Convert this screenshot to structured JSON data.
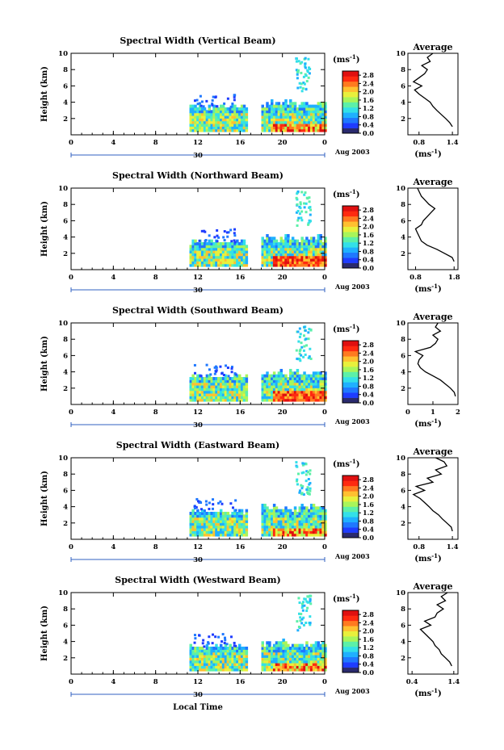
{
  "chart_data": [
    {
      "type": "heatmap",
      "title": "Spectral Width (Vertical Beam)",
      "ylabel": "Height (km)",
      "xlim": [
        0,
        24
      ],
      "ylim": [
        0,
        10
      ],
      "xticks": [
        "0",
        "4",
        "8",
        "12",
        "16",
        "20",
        "0"
      ],
      "yticks": [
        "2",
        "4",
        "6",
        "8",
        "10"
      ],
      "date_label": "30",
      "month_label": "Aug 2003",
      "colorbar": {
        "unit": "(ms",
        "exponent": "-1",
        "unit_close": ")",
        "ticks": [
          "2.8",
          "2.4",
          "2.0",
          "1.6",
          "1.2",
          "0.8",
          "0.4",
          "0.0"
        ],
        "range": [
          0.0,
          3.0
        ]
      },
      "average": {
        "title": "Average",
        "xlabel": "(ms",
        "xlabel_exp": "-1",
        "xlabel_close": ")",
        "xticks": [
          "0.8",
          "1.4"
        ],
        "xlim": [
          0.6,
          1.5
        ],
        "yticks": [
          "2",
          "4",
          "6",
          "8",
          "10"
        ],
        "ylim": [
          0,
          10
        ],
        "height": [
          1.0,
          1.5,
          2.0,
          2.5,
          3.0,
          3.5,
          4.0,
          4.5,
          5.0,
          5.5,
          6.0,
          6.5,
          7.0,
          7.5,
          8.0,
          8.5,
          9.0,
          9.5,
          10.0
        ],
        "value": [
          1.4,
          1.35,
          1.28,
          1.2,
          1.12,
          1.05,
          1.0,
          0.9,
          0.8,
          0.72,
          0.85,
          0.7,
          0.8,
          0.9,
          0.95,
          0.85,
          1.0,
          0.95,
          1.05
        ]
      }
    },
    {
      "type": "heatmap",
      "title": "Spectral Width (Northward Beam)",
      "ylabel": "Height (km)",
      "xlim": [
        0,
        24
      ],
      "ylim": [
        0,
        10
      ],
      "xticks": [
        "0",
        "4",
        "8",
        "12",
        "16",
        "20",
        "0"
      ],
      "yticks": [
        "2",
        "4",
        "6",
        "8",
        "10"
      ],
      "date_label": "30",
      "month_label": "Aug 2003",
      "colorbar": {
        "unit": "(ms",
        "exponent": "-1",
        "unit_close": ")",
        "ticks": [
          "2.8",
          "2.4",
          "2.0",
          "1.6",
          "1.2",
          "0.8",
          "0.4",
          "0.0"
        ],
        "range": [
          0.0,
          3.0
        ]
      },
      "average": {
        "title": "Average",
        "xlabel": "(ms",
        "xlabel_exp": "-1",
        "xlabel_close": ")",
        "xticks": [
          "0.8",
          "1.8"
        ],
        "xlim": [
          0.6,
          1.9
        ],
        "yticks": [
          "2",
          "4",
          "6",
          "8",
          "10"
        ],
        "ylim": [
          0,
          10
        ],
        "height": [
          1.0,
          1.5,
          2.0,
          2.5,
          3.0,
          3.5,
          4.0,
          4.5,
          5.0,
          5.5,
          6.0,
          6.5,
          7.0,
          7.5,
          8.0,
          8.5,
          9.0,
          9.5,
          10.0
        ],
        "value": [
          1.8,
          1.75,
          1.55,
          1.35,
          1.1,
          0.95,
          0.9,
          0.85,
          0.8,
          0.95,
          1.0,
          1.1,
          1.2,
          1.3,
          1.15,
          1.05,
          0.95,
          0.9,
          0.85
        ]
      }
    },
    {
      "type": "heatmap",
      "title": "Spectral Width (Southward Beam)",
      "ylabel": "Height (km)",
      "xlim": [
        0,
        24
      ],
      "ylim": [
        0,
        10
      ],
      "xticks": [
        "0",
        "4",
        "8",
        "12",
        "16",
        "20",
        "0"
      ],
      "yticks": [
        "2",
        "4",
        "6",
        "8",
        "10"
      ],
      "date_label": "30",
      "month_label": "Aug 2003",
      "colorbar": {
        "unit": "(ms",
        "exponent": "-1",
        "unit_close": ")",
        "ticks": [
          "2.8",
          "2.4",
          "2.0",
          "1.6",
          "1.2",
          "0.8",
          "0.4",
          "0.0"
        ],
        "range": [
          0.0,
          3.0
        ]
      },
      "average": {
        "title": "Average",
        "xlabel": "(ms",
        "xlabel_exp": "-1",
        "xlabel_close": ")",
        "xticks": [
          "0",
          "1",
          "2"
        ],
        "xlim": [
          0,
          2
        ],
        "yticks": [
          "2",
          "4",
          "6",
          "8",
          "10"
        ],
        "ylim": [
          0,
          10
        ],
        "height": [
          1.0,
          1.5,
          2.0,
          2.5,
          3.0,
          3.5,
          4.0,
          4.5,
          5.0,
          5.5,
          6.0,
          6.5,
          7.0,
          7.5,
          8.0,
          8.5,
          9.0,
          9.5,
          10.0
        ],
        "value": [
          1.9,
          1.85,
          1.7,
          1.5,
          1.3,
          1.0,
          0.7,
          0.5,
          0.4,
          0.45,
          0.6,
          0.3,
          0.9,
          1.1,
          1.2,
          1.0,
          1.3,
          1.1,
          1.2
        ]
      }
    },
    {
      "type": "heatmap",
      "title": "Spectral Width (Eastward Beam)",
      "ylabel": "Height (km)",
      "xlim": [
        0,
        24
      ],
      "ylim": [
        0,
        10
      ],
      "xticks": [
        "0",
        "4",
        "8",
        "12",
        "16",
        "20",
        "0"
      ],
      "yticks": [
        "2",
        "4",
        "6",
        "8",
        "10"
      ],
      "date_label": "30",
      "month_label": "Aug 2003",
      "colorbar": {
        "unit": "(ms",
        "exponent": "-1",
        "unit_close": ")",
        "ticks": [
          "2.8",
          "2.4",
          "2.0",
          "1.6",
          "1.2",
          "0.8",
          "0.4",
          "0.0"
        ],
        "range": [
          0.0,
          3.0
        ]
      },
      "average": {
        "title": "Average",
        "xlabel": "(ms",
        "xlabel_exp": "-1",
        "xlabel_close": ")",
        "xticks": [
          "0.8",
          "1.4"
        ],
        "xlim": [
          0.6,
          1.5
        ],
        "yticks": [
          "2",
          "4",
          "6",
          "8",
          "10"
        ],
        "ylim": [
          0,
          10
        ],
        "height": [
          1.0,
          1.5,
          2.0,
          2.5,
          3.0,
          3.5,
          4.0,
          4.5,
          5.0,
          5.5,
          6.0,
          6.5,
          7.0,
          7.5,
          8.0,
          8.5,
          9.0,
          9.5,
          10.0
        ],
        "value": [
          1.4,
          1.38,
          1.3,
          1.22,
          1.15,
          1.05,
          0.98,
          0.9,
          0.82,
          0.7,
          0.9,
          0.75,
          1.05,
          0.95,
          1.2,
          1.1,
          1.3,
          1.25,
          1.1
        ]
      }
    },
    {
      "type": "heatmap",
      "title": "Spectral Width (Westward Beam)",
      "ylabel": "Height (km)",
      "xlim": [
        0,
        24
      ],
      "ylim": [
        0,
        10
      ],
      "xticks": [
        "0",
        "4",
        "8",
        "12",
        "16",
        "20",
        "0"
      ],
      "yticks": [
        "2",
        "4",
        "6",
        "8",
        "10"
      ],
      "date_label": "30",
      "month_label": "Aug 2003",
      "colorbar": {
        "unit": "(ms",
        "exponent": "-1",
        "unit_close": ")",
        "ticks": [
          "2.8",
          "2.4",
          "2.0",
          "1.6",
          "1.2",
          "0.8",
          "0.4",
          "0.0"
        ],
        "range": [
          0.0,
          3.0
        ]
      },
      "average": {
        "title": "Average",
        "xlabel": "(ms",
        "xlabel_exp": "-1",
        "xlabel_close": ")",
        "xticks": [
          "0.4",
          "1.4"
        ],
        "xlim": [
          0.3,
          1.5
        ],
        "yticks": [
          "2",
          "4",
          "6",
          "8",
          "10"
        ],
        "ylim": [
          0,
          10
        ],
        "height": [
          1.0,
          1.5,
          2.0,
          2.5,
          3.0,
          3.5,
          4.0,
          4.5,
          5.0,
          5.5,
          6.0,
          6.5,
          7.0,
          7.5,
          8.0,
          8.5,
          9.0,
          9.5,
          10.0
        ],
        "value": [
          1.35,
          1.3,
          1.2,
          1.1,
          1.05,
          0.95,
          0.9,
          0.8,
          0.7,
          0.6,
          0.85,
          0.7,
          0.95,
          1.0,
          1.15,
          1.0,
          1.2,
          1.1,
          1.25
        ]
      }
    }
  ],
  "xlabel": "Local Time",
  "colors": {
    "colormap": [
      "#2a2a6e",
      "#1e3cff",
      "#1f78ff",
      "#1fb0ff",
      "#33e0e8",
      "#5cf0a8",
      "#a8f55a",
      "#e8f03c",
      "#ffc030",
      "#ff7a20",
      "#ff2a10",
      "#e01010"
    ],
    "axis": "#000000",
    "time_bar": "#3060c0"
  }
}
